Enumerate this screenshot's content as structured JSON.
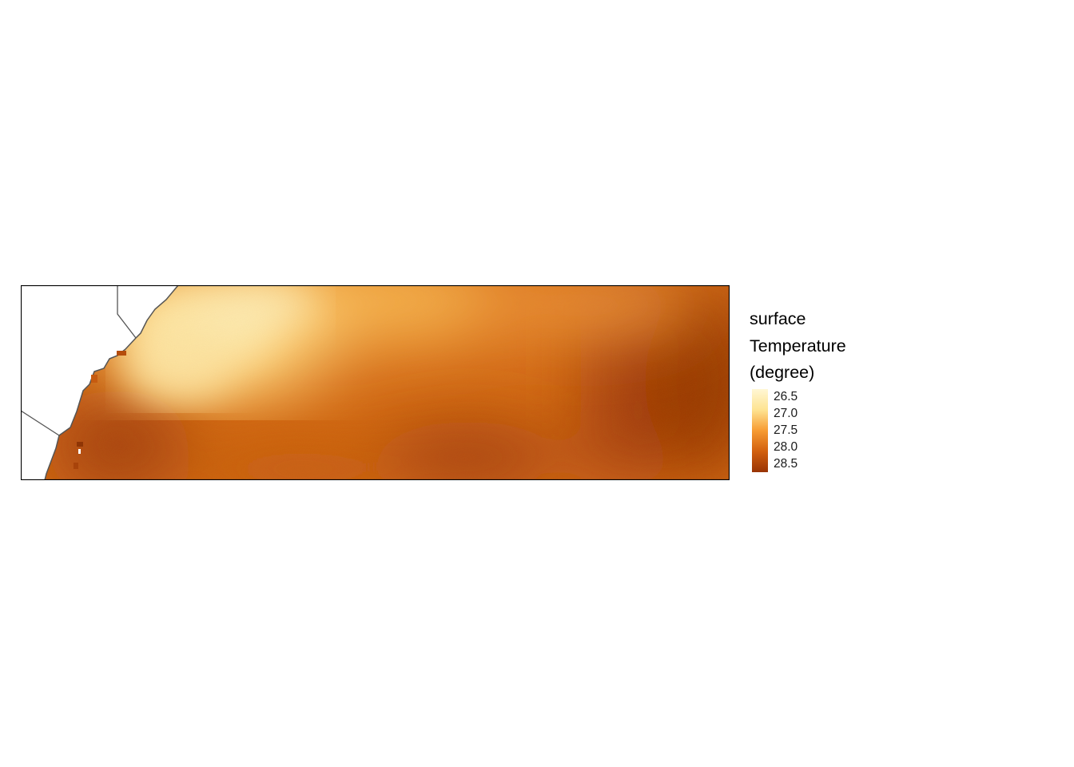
{
  "map": {
    "variable": "surface Temperature",
    "units": "degree",
    "layers": [
      "sea surface temperature raster",
      "country borders",
      "coastline"
    ]
  },
  "legend": {
    "title_lines": [
      "surface",
      "Temperature",
      "(degree)"
    ],
    "labels": [
      "26.5",
      "27.0",
      "27.5",
      "28.0",
      "28.5"
    ],
    "values": [
      26.5,
      27.0,
      27.5,
      28.0,
      28.5
    ],
    "palette": [
      "#fff7d4",
      "#fee391",
      "#f79b32",
      "#d2600e",
      "#993404"
    ]
  },
  "colors": {
    "land": "#ffffff",
    "border": "#555555",
    "frame": "#000000"
  }
}
